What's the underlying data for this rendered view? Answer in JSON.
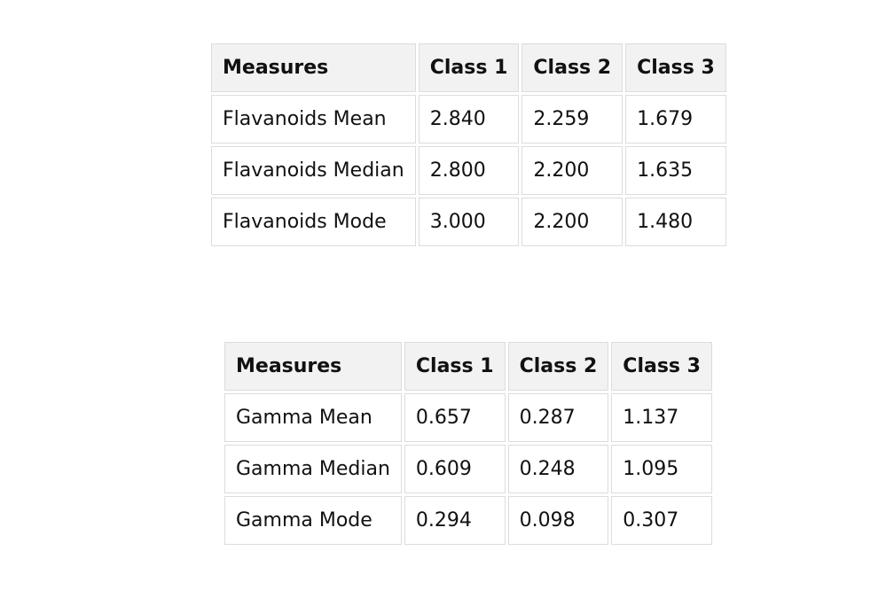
{
  "tables": [
    {
      "headers": [
        "Measures",
        "Class 1",
        "Class 2",
        "Class 3"
      ],
      "rows": [
        [
          "Flavanoids Mean",
          "2.840",
          "2.259",
          "1.679"
        ],
        [
          "Flavanoids Median",
          "2.800",
          "2.200",
          "1.635"
        ],
        [
          "Flavanoids Mode",
          "3.000",
          "2.200",
          "1.480"
        ]
      ]
    },
    {
      "headers": [
        "Measures",
        "Class 1",
        "Class 2",
        "Class 3"
      ],
      "rows": [
        [
          "Gamma Mean",
          "0.657",
          "0.287",
          "1.137"
        ],
        [
          "Gamma Median",
          "0.609",
          "0.248",
          "1.095"
        ],
        [
          "Gamma Mode",
          "0.294",
          "0.098",
          "0.307"
        ]
      ]
    }
  ]
}
